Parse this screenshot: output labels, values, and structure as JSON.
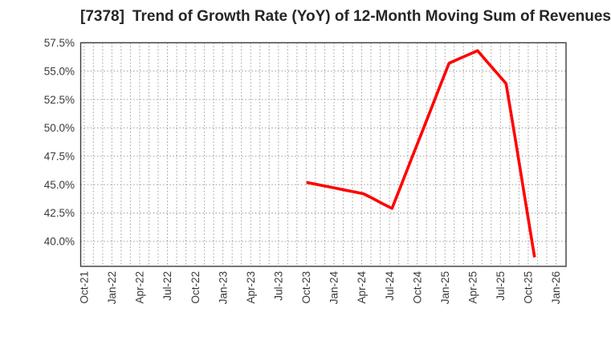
{
  "chart_data": {
    "type": "line",
    "title_code": "[7378]",
    "title_main": "Trend of Growth Rate (YoY) of 12-Month Moving Sum of Revenues",
    "title": "[7378]  Trend of Growth Rate (YoY) of 12-Month Moving Sum of Revenues",
    "xlabel": "",
    "ylabel": "",
    "legend": "none",
    "grid": "dotted",
    "ylim": [
      37.8,
      57.5
    ],
    "y_ticks": [
      {
        "label": "57.5%",
        "value": 57.5
      },
      {
        "label": "55.0%",
        "value": 55.0
      },
      {
        "label": "52.5%",
        "value": 52.5
      },
      {
        "label": "50.0%",
        "value": 50.0
      },
      {
        "label": "47.5%",
        "value": 47.5
      },
      {
        "label": "45.0%",
        "value": 45.0
      },
      {
        "label": "42.5%",
        "value": 42.5
      },
      {
        "label": "40.0%",
        "value": 40.0
      }
    ],
    "x_axis_months_start": "Oct-21",
    "x_axis_months_count": 52,
    "x_tick_labels": [
      "Oct-21",
      "Jan-22",
      "Apr-22",
      "Jul-22",
      "Oct-22",
      "Jan-23",
      "Apr-23",
      "Jul-23",
      "Oct-23",
      "Jan-24",
      "Apr-24",
      "Jul-24",
      "Oct-24",
      "Jan-25",
      "Apr-25",
      "Jul-25",
      "Oct-25",
      "Jan-26"
    ],
    "x_tick_month_step": 3,
    "series": [
      {
        "name": "Growth Rate (YoY) of 12-Month Moving Sum of Revenues",
        "color": "#ff0000",
        "start_month_index": 24,
        "x": [
          "Oct-23",
          "Nov-23",
          "Dec-23",
          "Jan-24",
          "Feb-24",
          "Mar-24",
          "Apr-24",
          "May-24",
          "Jun-24",
          "Jul-24",
          "Aug-24",
          "Sep-24",
          "Oct-24",
          "Nov-24",
          "Dec-24",
          "Jan-25",
          "Feb-25",
          "Mar-25",
          "Apr-25",
          "May-25",
          "Jun-25",
          "Jul-25",
          "Aug-25",
          "Sep-25",
          "Oct-25"
        ],
        "values": [
          45.2,
          45.03,
          44.87,
          44.7,
          44.53,
          44.37,
          44.2,
          43.77,
          43.33,
          42.9,
          45.03,
          47.17,
          49.3,
          51.43,
          53.57,
          55.7,
          56.07,
          56.43,
          56.8,
          55.83,
          54.87,
          53.9,
          48.9,
          43.7,
          38.6
        ]
      }
    ],
    "colors": {
      "line": "#ff0000",
      "grid": "#9a9a9a",
      "frame": "#3c3c3c",
      "tick_text": "#3a3a3a",
      "title_text": "#262626",
      "background": "#ffffff"
    }
  }
}
